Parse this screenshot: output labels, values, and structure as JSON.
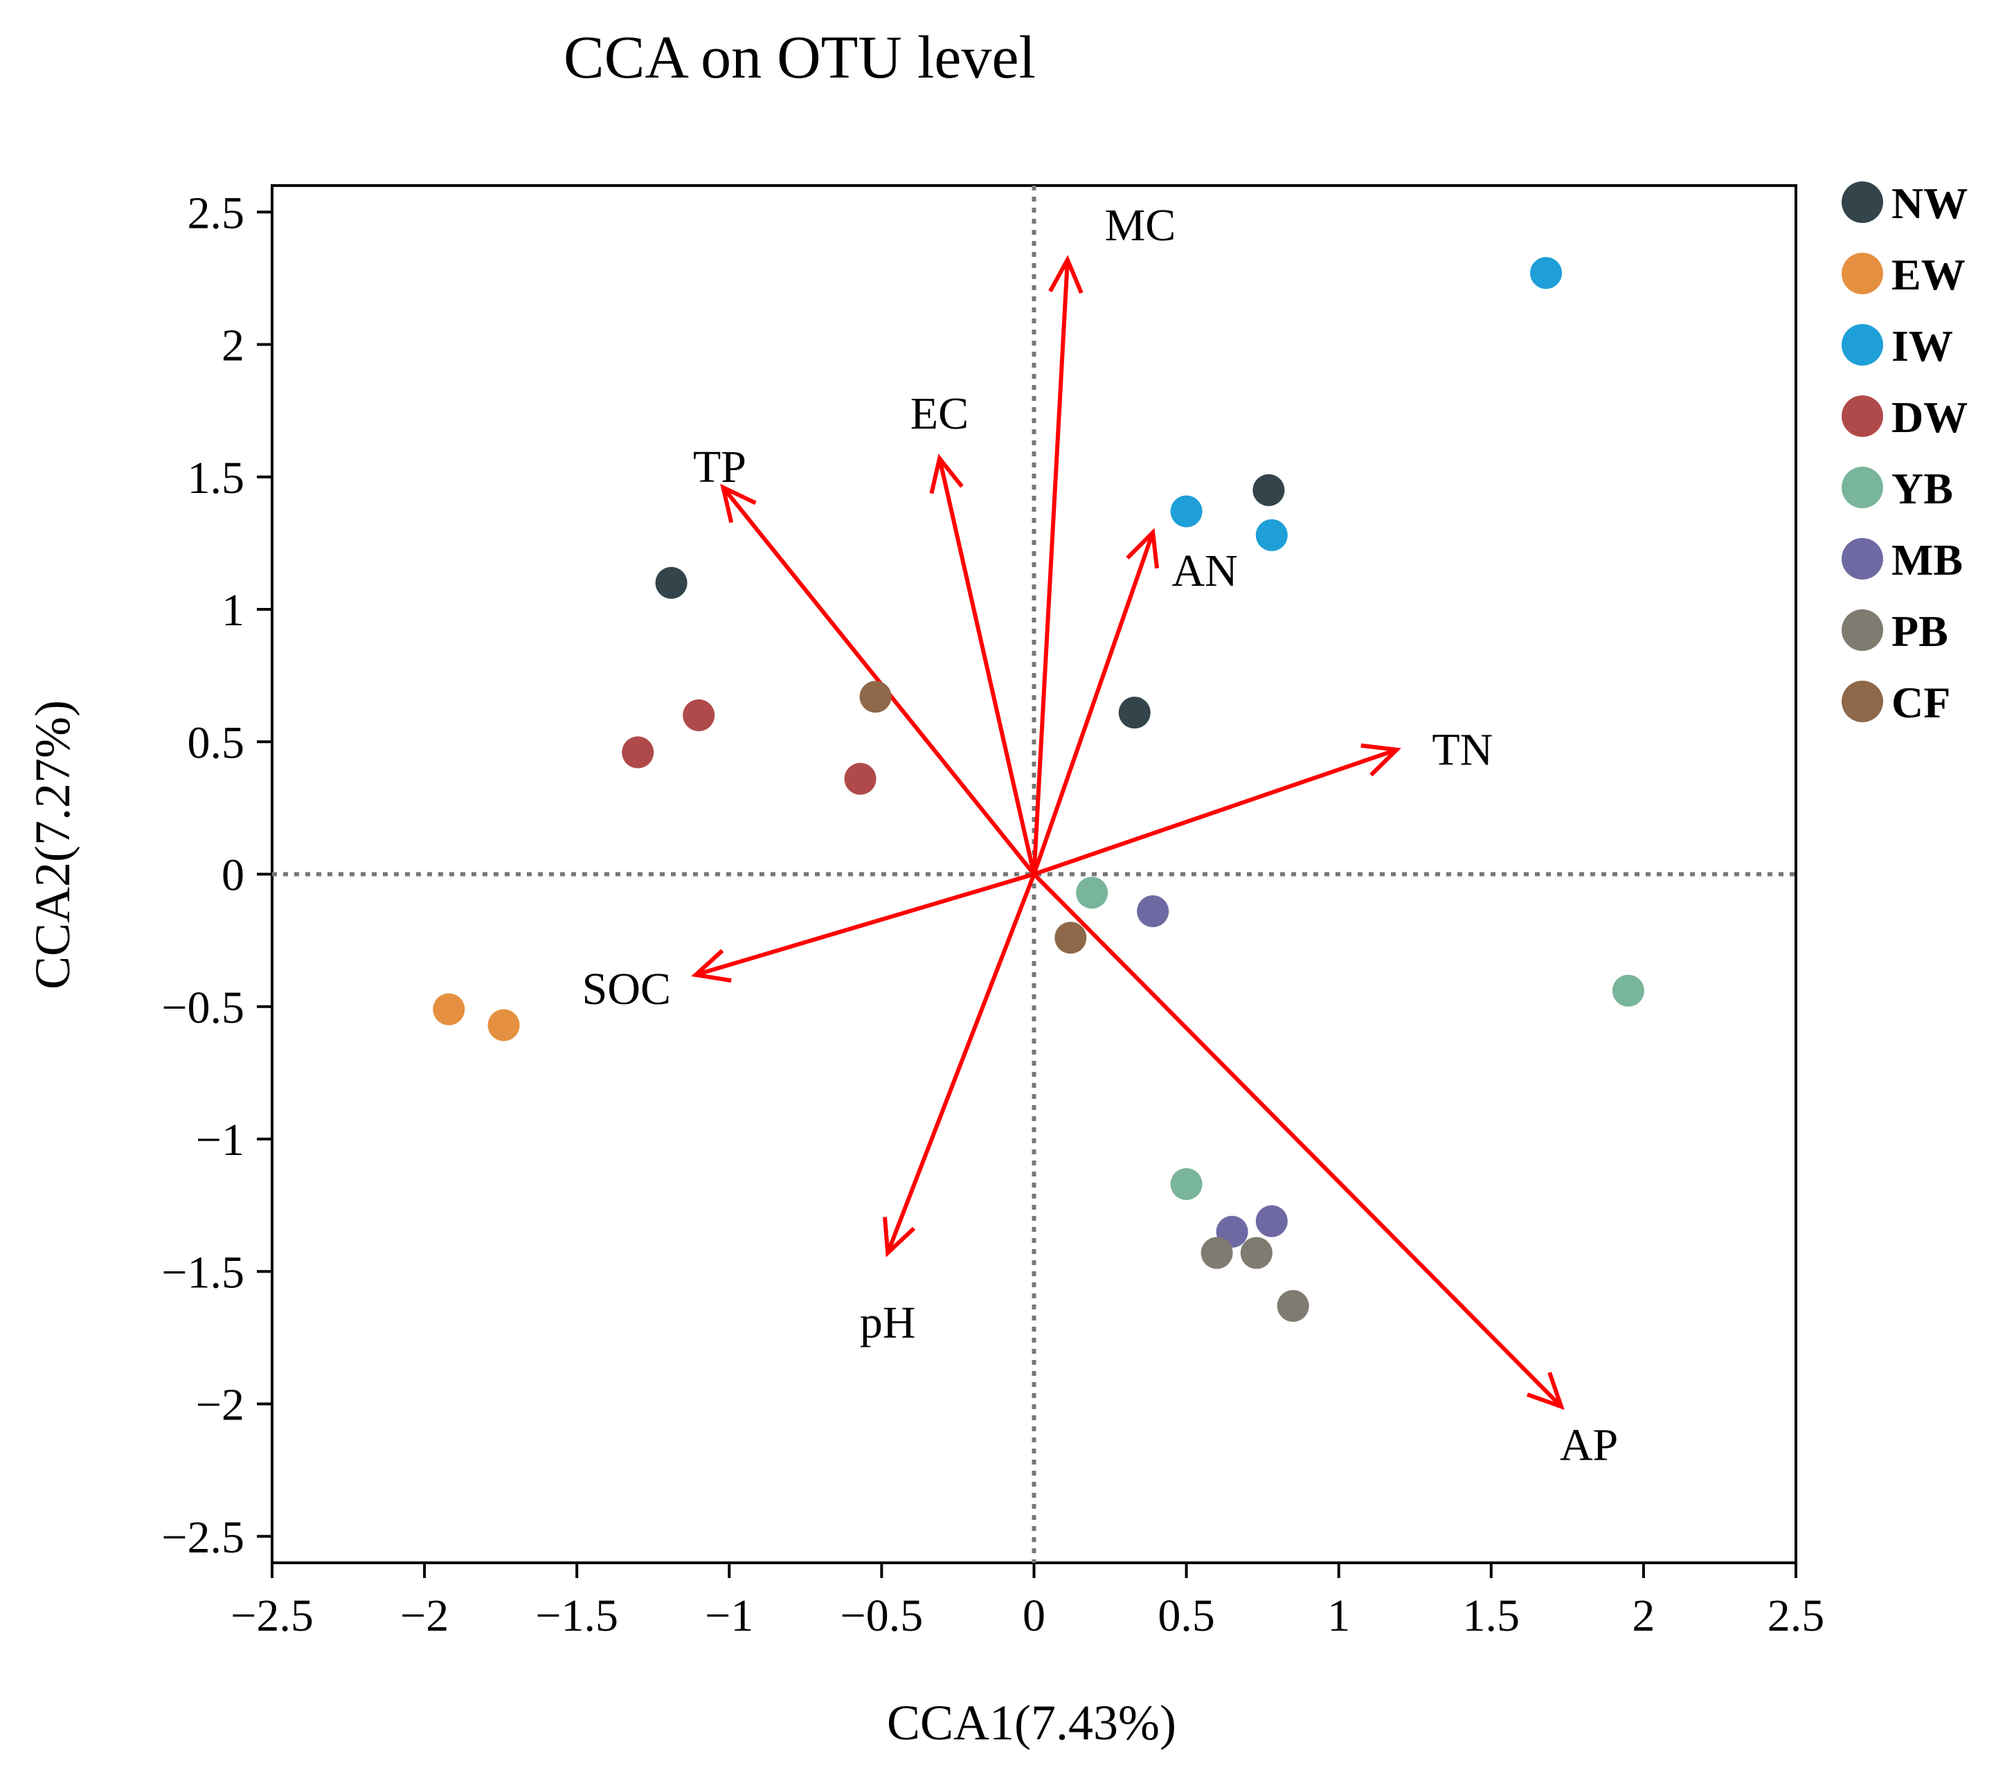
{
  "chart_data": {
    "type": "scatter",
    "title": "CCA on OTU level",
    "xlabel": "CCA1(7.43%)",
    "ylabel": "CCA2(7.27%)",
    "xlim": [
      -2.5,
      2.5
    ],
    "ylim": [
      -2.6,
      2.6
    ],
    "x_ticks": [
      -2.5,
      -2,
      -1.5,
      -1,
      -0.5,
      0,
      0.5,
      1,
      1.5,
      2,
      2.5
    ],
    "y_ticks": [
      -2.5,
      -2,
      -1.5,
      -1,
      -0.5,
      0,
      0.5,
      1,
      1.5,
      2,
      2.5
    ],
    "x_tick_labels": [
      "−2.5",
      "−2",
      "−1.5",
      "−1",
      "−0.5",
      "0",
      "0.5",
      "1",
      "1.5",
      "2",
      "2.5"
    ],
    "y_tick_labels": [
      "−2.5",
      "−2",
      "−1.5",
      "−1",
      "−0.5",
      "0",
      "0.5",
      "1",
      "1.5",
      "2",
      "2.5"
    ],
    "grid": false,
    "reference_lines": [
      {
        "axis": "x",
        "value": 0,
        "style": "dotted"
      },
      {
        "axis": "y",
        "value": 0,
        "style": "dotted"
      }
    ],
    "legend_position": "right",
    "series": [
      {
        "name": "NW",
        "color": "#33444a",
        "points": [
          [
            -1.19,
            1.1
          ],
          [
            0.77,
            1.45
          ],
          [
            0.33,
            0.61
          ]
        ]
      },
      {
        "name": "EW",
        "color": "#e59040",
        "points": [
          [
            -1.92,
            -0.51
          ],
          [
            -1.74,
            -0.57
          ]
        ]
      },
      {
        "name": "IW",
        "color": "#1f9fd8",
        "points": [
          [
            1.68,
            2.27
          ],
          [
            0.5,
            1.37
          ],
          [
            0.78,
            1.28
          ]
        ]
      },
      {
        "name": "DW",
        "color": "#b04a4a",
        "points": [
          [
            -1.1,
            0.6
          ],
          [
            -1.3,
            0.46
          ],
          [
            -0.57,
            0.36
          ]
        ]
      },
      {
        "name": "YB",
        "color": "#79b59a",
        "points": [
          [
            0.19,
            -0.07
          ],
          [
            1.95,
            -0.44
          ],
          [
            0.5,
            -1.17
          ]
        ]
      },
      {
        "name": "MB",
        "color": "#6f69a3",
        "points": [
          [
            0.39,
            -0.14
          ],
          [
            0.78,
            -1.31
          ],
          [
            0.65,
            -1.35
          ]
        ]
      },
      {
        "name": "PB",
        "color": "#7f7b70",
        "points": [
          [
            0.6,
            -1.43
          ],
          [
            0.73,
            -1.43
          ],
          [
            0.85,
            -1.63
          ]
        ]
      },
      {
        "name": "CF",
        "color": "#8e6848",
        "points": [
          [
            -0.52,
            0.67
          ],
          [
            0.12,
            -0.24
          ]
        ]
      }
    ],
    "arrows": [
      {
        "label": "MC",
        "x": 0.11,
        "y": 2.32
      },
      {
        "label": "EC",
        "x": -0.31,
        "y": 1.57
      },
      {
        "label": "TP",
        "x": -1.02,
        "y": 1.46
      },
      {
        "label": "AN",
        "x": 0.39,
        "y": 1.29
      },
      {
        "label": "TN",
        "x": 1.19,
        "y": 0.47
      },
      {
        "label": "SOC",
        "x": -1.11,
        "y": -0.38
      },
      {
        "label": "pH",
        "x": -0.48,
        "y": -1.43
      },
      {
        "label": "AP",
        "x": 1.73,
        "y": -2.01
      }
    ],
    "arrow_color": "#ff0000"
  }
}
